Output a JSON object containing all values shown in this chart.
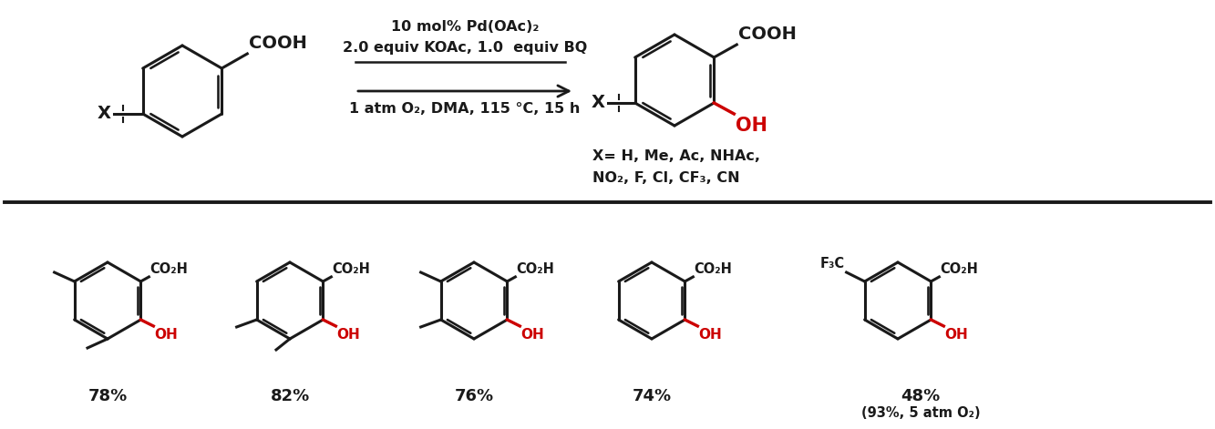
{
  "bg_color": "#ffffff",
  "black": "#000000",
  "red": "#cc0000",
  "line_color": "#1a1a1a",
  "top_reaction": {
    "reagent_line1": "10 mol% Pd(OAc)₂",
    "reagent_line2": "2.0 equiv KOAc, 1.0  equiv BQ",
    "condition_line": "1 atm O₂, DMA, 115 °C, 15 h",
    "substrate_note_line1": "X= H, Me, Ac, NHAc,",
    "substrate_note_line2": "NO₂, F, Cl, CF₃, CN"
  },
  "products": [
    {
      "yield": "78%",
      "label2": null
    },
    {
      "yield": "82%",
      "label2": null
    },
    {
      "yield": "76%",
      "label2": null
    },
    {
      "yield": "74%",
      "label2": null
    },
    {
      "yield": "48%",
      "label2": "(93%, 5 atm O₂)"
    }
  ]
}
